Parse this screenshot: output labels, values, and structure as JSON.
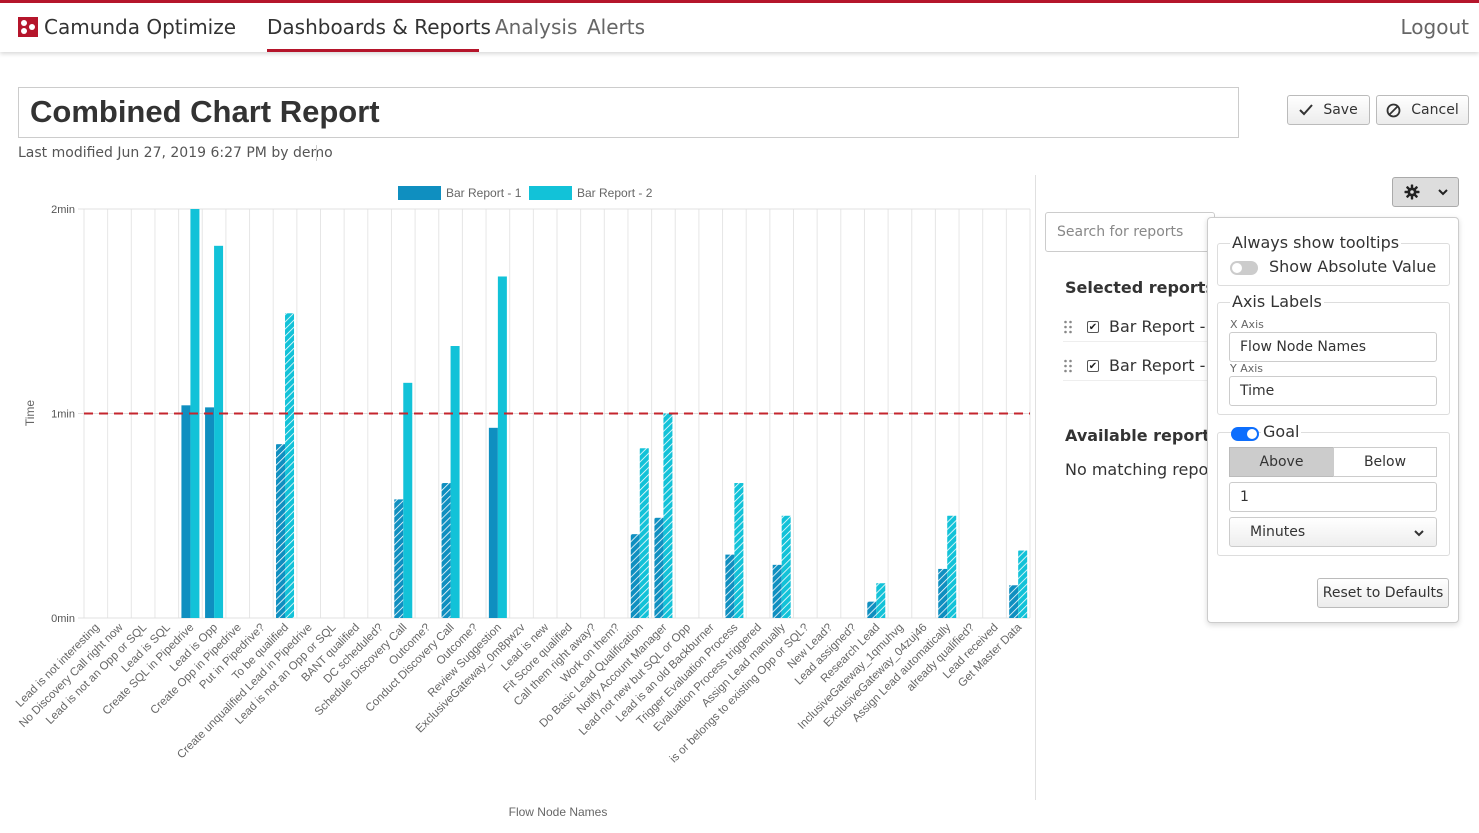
{
  "header": {
    "brand": "Camunda Optimize",
    "nav": [
      "Dashboards & Reports",
      "Analysis",
      "Alerts"
    ],
    "logout": "Logout",
    "accent": "#b5152b"
  },
  "report": {
    "title": "Combined Chart Report",
    "modified": "Last modified Jun 27, 2019 6:27 PM by demo"
  },
  "actions": {
    "save": "Save",
    "cancel": "Cancel"
  },
  "sidebar": {
    "search_placeholder": "Search for reports",
    "selected_label": "Selected reports:",
    "selected": [
      "Bar Report -",
      "Bar Report -"
    ],
    "available_label": "Available reports:",
    "no_match": "No matching report"
  },
  "config": {
    "tooltips_title": "Always show tooltips",
    "absolute_value": "Show Absolute Value",
    "absolute_on": false,
    "axis_title": "Axis Labels",
    "x_axis_label": "X Axis",
    "x_axis_value": "Flow Node Names",
    "y_axis_label": "Y Axis",
    "y_axis_value": "Time",
    "goal_title": "Goal",
    "goal_on": true,
    "goal_above": "Above",
    "goal_below": "Below",
    "goal_value": "1",
    "goal_unit": "Minutes",
    "reset": "Reset to Defaults"
  },
  "chart_data": {
    "type": "bar",
    "xlabel": "Flow Node Names",
    "ylabel": "Time",
    "y_ticks": [
      "0min",
      "1min",
      "2min"
    ],
    "ylim": [
      0,
      2
    ],
    "y_unit": "min",
    "goal_line": 1,
    "legend_position": "top",
    "categories": [
      "Lead is not interesting",
      "No Discovery Call right now",
      "Lead is not an Opp or SQL",
      "Lead is SQL",
      "Create SQL in Pipedrive",
      "Lead is Opp",
      "Create Opp in Pipedrive",
      "Put in Pipedrive?",
      "To be qualified",
      "Create unqualified Lead in Pipedrive",
      "Lead is not an Opp or SQL",
      "BANT qualified",
      "DC scheduled?",
      "Schedule Discovery Call",
      "Outcome?",
      "Conduct Discovery Call",
      "Outcome?",
      "Review Suggestion",
      "ExclusiveGateway_0m8pwzv",
      "Lead is new",
      "Fit Score qualified",
      "Call them right away?",
      "Work on them?",
      "Do Basic Lead Qualification",
      "Notify Account Manager",
      "Lead not new but SQL or Opp",
      "Lead is an old Backburner",
      "Trigger Evaluation Process",
      "Evaluation Process triggered",
      "Assign Lead manually",
      "is or belongs to existing Opp or SQL?",
      "New Lead?",
      "Lead assigned?",
      "Research Lead",
      "InclusiveGateway_1qmuhvg",
      "ExclusiveGateway_04zuj46",
      "Assign Lead automatically",
      "already qualified?",
      "Lead received",
      "Get Master Data"
    ],
    "series": [
      {
        "name": "Bar Report - 1",
        "color": "#0f8fc0",
        "values": [
          0,
          0,
          0,
          0,
          1.04,
          1.03,
          0,
          0,
          0.85,
          0,
          0,
          0,
          0,
          0.58,
          0,
          0.66,
          0,
          0.93,
          0,
          0,
          0,
          0,
          0,
          0.41,
          0.49,
          0,
          0,
          0.31,
          0,
          0.26,
          0,
          0,
          0,
          0.08,
          0,
          0,
          0.24,
          0,
          0,
          0.16
        ]
      },
      {
        "name": "Bar Report - 2",
        "color": "#12c2d8",
        "values": [
          0,
          0,
          0,
          0,
          2.0,
          1.82,
          0,
          0,
          1.49,
          0,
          0,
          0,
          0,
          1.15,
          0,
          1.33,
          0,
          1.67,
          0,
          0,
          0,
          0,
          0,
          0.83,
          1.0,
          0,
          0,
          0.66,
          0,
          0.5,
          0,
          0,
          0,
          0.17,
          0,
          0,
          0.5,
          0,
          0,
          0.33
        ]
      }
    ]
  }
}
